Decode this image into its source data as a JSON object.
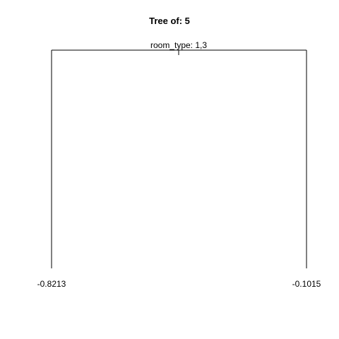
{
  "title": "Tree of: 5",
  "tree": {
    "split_label": "room_type: 1,3",
    "leaves": [
      {
        "label": "-0.8213"
      },
      {
        "label": "-0.1015"
      }
    ]
  }
}
